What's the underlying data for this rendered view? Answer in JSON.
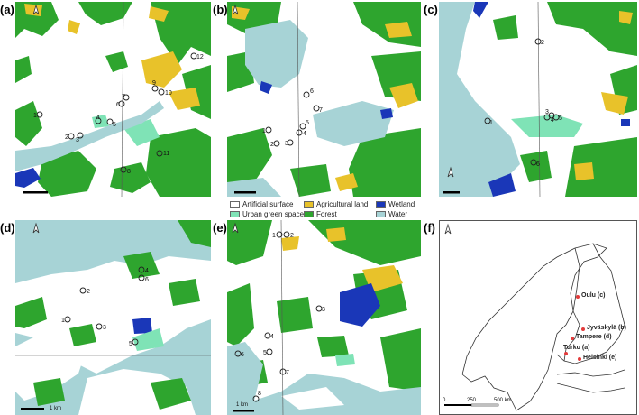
{
  "panels": {
    "a": {
      "label": "(a)"
    },
    "b": {
      "label": "(b)"
    },
    "c": {
      "label": "(c)"
    },
    "d": {
      "label": "(d)"
    },
    "e": {
      "label": "(e)"
    },
    "f": {
      "label": "(f)"
    }
  },
  "legend": {
    "items": [
      {
        "label": "Artificial surface",
        "color": "#ffffff"
      },
      {
        "label": "Agricultural land",
        "color": "#e8c22a"
      },
      {
        "label": "Wetland",
        "color": "#1a37b8"
      },
      {
        "label": "Urban green space",
        "color": "#7fe3b6"
      },
      {
        "label": "Forest",
        "color": "#2ea52e"
      },
      {
        "label": "Water",
        "color": "#a7d3d6"
      }
    ]
  },
  "sites": {
    "a": [
      "1",
      "2",
      "3",
      "4",
      "5",
      "6",
      "7",
      "8",
      "9",
      "10",
      "11",
      "12"
    ],
    "b": [
      "1",
      "2",
      "3",
      "4",
      "5",
      "6",
      "7"
    ],
    "c": [
      "1",
      "2",
      "3",
      "4",
      "5",
      "6"
    ],
    "d": [
      "1",
      "2",
      "3",
      "4",
      "5",
      "6"
    ],
    "e": [
      "1",
      "2",
      "3",
      "4",
      "5",
      "6",
      "7",
      "8"
    ]
  },
  "scale": {
    "d": "1 km",
    "e": "1 km",
    "f_ticks": [
      "0",
      "250",
      "500 km"
    ]
  },
  "cities": [
    {
      "label": "Oulu (c)"
    },
    {
      "label": "Jyväskylä (b)"
    },
    {
      "label": "Tampere (d)"
    },
    {
      "label": "Turku (a)"
    },
    {
      "label": "Helsinki (e)"
    }
  ]
}
